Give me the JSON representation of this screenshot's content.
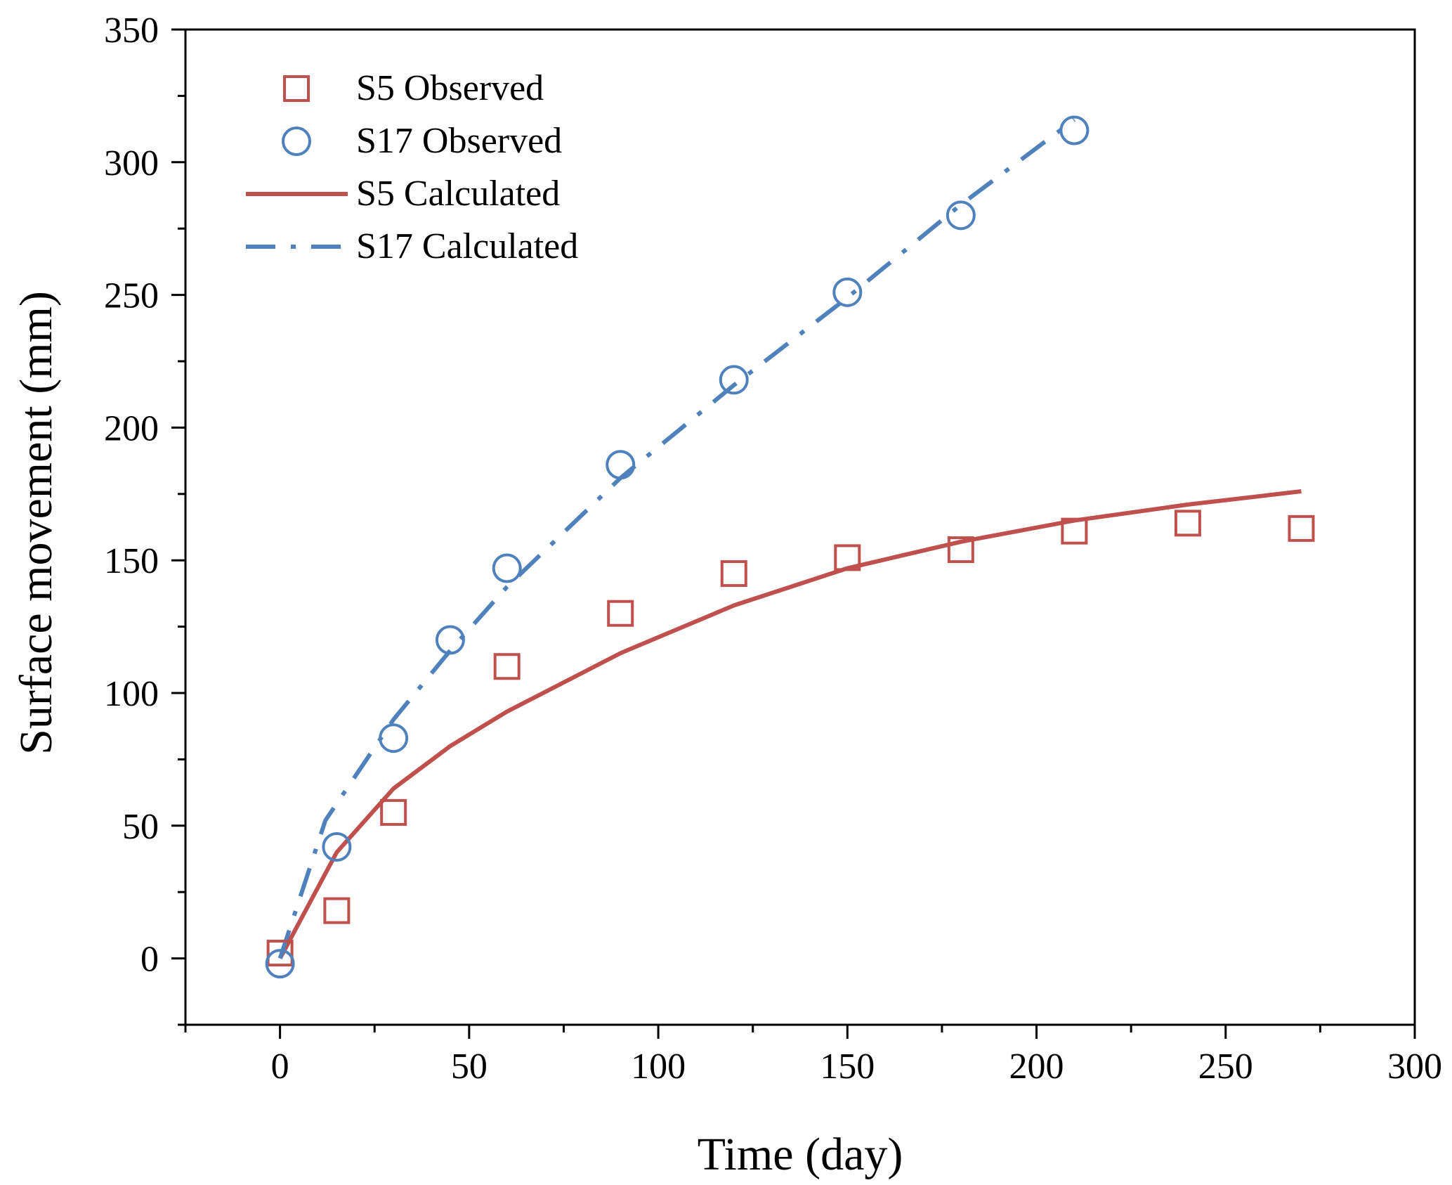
{
  "chart_data": {
    "type": "scatter",
    "xlabel": "Time (day)",
    "ylabel": "Surface movement (mm)",
    "xlim": [
      -25,
      300
    ],
    "ylim": [
      -25,
      350
    ],
    "xticks": [
      0,
      50,
      100,
      150,
      200,
      250,
      300
    ],
    "yticks": [
      0,
      50,
      100,
      150,
      200,
      250,
      300,
      350
    ],
    "x_minor_step": 25,
    "y_minor_step": 25,
    "grid": false,
    "legend_position": "top-left",
    "series": [
      {
        "name": "S5 Observed",
        "kind": "markers",
        "marker": "square",
        "color": "#c0504d",
        "x": [
          0,
          15,
          30,
          60,
          90,
          120,
          150,
          180,
          210,
          240,
          270
        ],
        "y": [
          2,
          18,
          55,
          110,
          130,
          145,
          151,
          154,
          161,
          164,
          162
        ]
      },
      {
        "name": "S17 Observed",
        "kind": "markers",
        "marker": "circle",
        "color": "#4f81bd",
        "x": [
          0,
          15,
          30,
          45,
          60,
          90,
          120,
          150,
          180,
          210
        ],
        "y": [
          -2,
          42,
          83,
          120,
          147,
          186,
          218,
          251,
          280,
          312
        ]
      },
      {
        "name": "S5 Calculated",
        "kind": "line",
        "dash": "solid",
        "color": "#c0504d",
        "x": [
          0,
          15,
          30,
          45,
          60,
          90,
          120,
          150,
          180,
          210,
          240,
          270
        ],
        "y": [
          0,
          40,
          64,
          80,
          93,
          115,
          133,
          147,
          157,
          165,
          171,
          176
        ]
      },
      {
        "name": "S17 Calculated",
        "kind": "line",
        "dash": "dash-dot",
        "color": "#4f81bd",
        "x": [
          0,
          12,
          30,
          45,
          60,
          90,
          120,
          150,
          180,
          210
        ],
        "y": [
          0,
          52,
          90,
          116,
          140,
          181,
          216,
          249,
          284,
          316
        ]
      }
    ]
  }
}
